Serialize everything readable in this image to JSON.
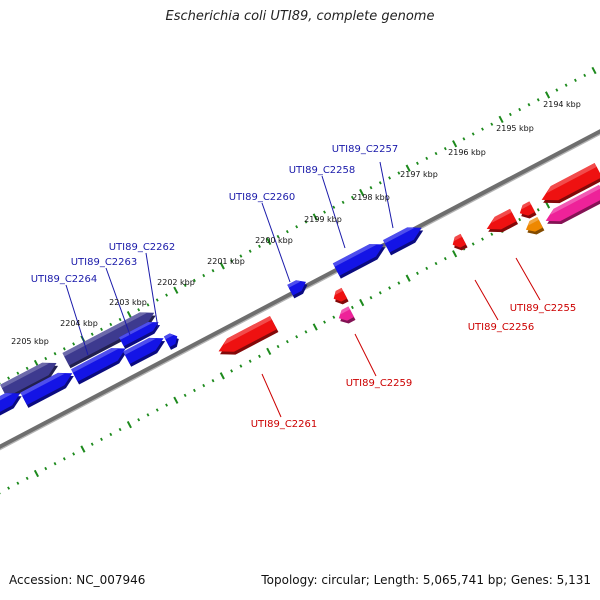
{
  "title": "Escherichia coli UTI89, complete genome",
  "footer": {
    "accession": "Accession: NC_007946",
    "stats": "Topology: circular; Length: 5,065,741 bp; Genes: 5,131"
  },
  "colors": {
    "background": "#ffffff",
    "backbone": "#6e6e6e",
    "tick_dots": "#1d8a1d",
    "forward_gene": "#1414e6",
    "forward_gene_dark": "#3d3a8f",
    "reverse_gene": "#ee1111",
    "reverse_gene_pink": "#ee2299",
    "reverse_gene_orange": "#ee8800",
    "forward_label": "#1a1aaa",
    "reverse_label": "#cc0000",
    "scale_label": "#111111"
  },
  "scale_labels": [
    "2194 kbp",
    "2195 kbp",
    "2196 kbp",
    "2197 kbp",
    "2198 kbp",
    "2199 kbp",
    "2200 kbp",
    "2201 kbp",
    "2202 kbp",
    "2203 kbp",
    "2204 kbp",
    "2205 kbp"
  ],
  "forward_gene_labels": [
    "UTI89_C2257",
    "UTI89_C2258",
    "UTI89_C2260",
    "UTI89_C2262",
    "UTI89_C2263",
    "UTI89_C2264"
  ],
  "reverse_gene_labels": [
    "UTI89_C2255",
    "UTI89_C2256",
    "UTI89_C2259",
    "UTI89_C2261"
  ]
}
